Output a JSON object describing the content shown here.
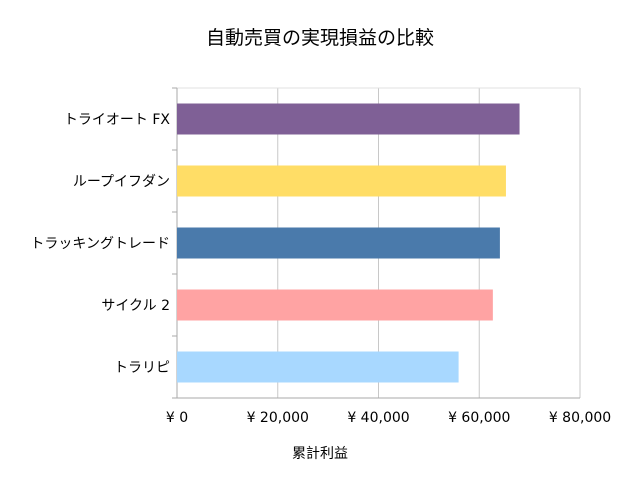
{
  "chart_data": {
    "type": "bar",
    "orientation": "horizontal",
    "title": "自動売買の実現損益の比較",
    "xlabel": "累計利益",
    "ylabel": "",
    "categories": [
      "トライオート FX",
      "ループイフダン",
      "トラッキングトレード",
      "サイクル 2",
      "トラリピ"
    ],
    "values": [
      68000,
      65300,
      64100,
      62700,
      55900
    ],
    "colors": [
      "#7f6096",
      "#ffdd66",
      "#4a7aab",
      "#ffa3a3",
      "#a8d8ff"
    ],
    "xlim": [
      0,
      80000
    ],
    "xticks": [
      0,
      20000,
      40000,
      60000,
      80000
    ],
    "xtick_labels": [
      "¥ 0",
      "¥ 20,000",
      "¥ 40,000",
      "¥ 60,000",
      "¥ 80,000"
    ],
    "grid": true,
    "legend": "none"
  }
}
